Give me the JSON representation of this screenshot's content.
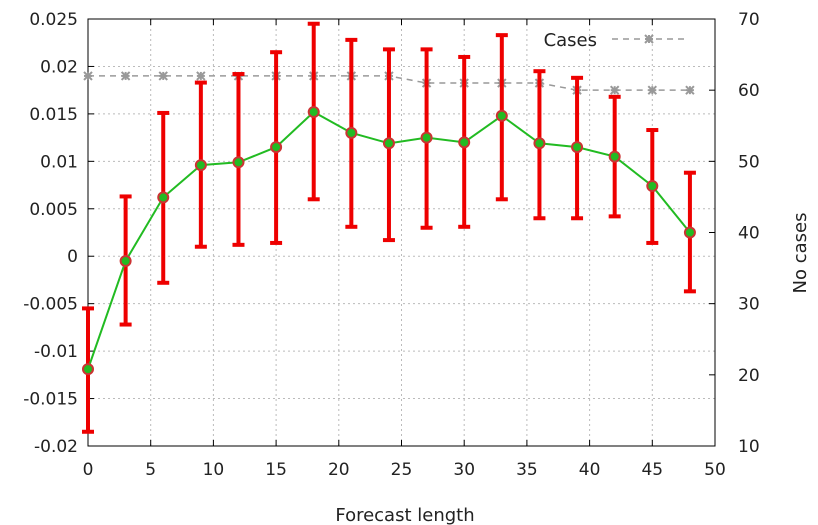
{
  "chart_data": {
    "type": "line",
    "title": "",
    "xlabel": "Forecast length",
    "ylabel": "",
    "y2label": "No cases",
    "xlim": [
      0,
      50
    ],
    "ylim": [
      -0.02,
      0.025
    ],
    "y2lim": [
      10,
      70
    ],
    "x_ticks": [
      "0",
      "5",
      "10",
      "15",
      "20",
      "25",
      "30",
      "35",
      "40",
      "45",
      "50"
    ],
    "y_ticks": [
      "-0.02",
      "-0.015",
      "-0.01",
      "-0.005",
      "0",
      "0.005",
      "0.01",
      "0.015",
      "0.02",
      "0.025"
    ],
    "y2_ticks": [
      "10",
      "20",
      "30",
      "40",
      "50",
      "60",
      "70"
    ],
    "grid": true,
    "legend_position": "top-right",
    "series": [
      {
        "name": "",
        "axis": "left",
        "color": "#22bb22",
        "marker_color": "#cc3333",
        "error_bar_color": "#ee0000",
        "x": [
          0,
          3,
          6,
          9,
          12,
          15,
          18,
          21,
          24,
          27,
          30,
          33,
          36,
          39,
          42,
          45,
          48
        ],
        "y": [
          -0.0119,
          -0.0005,
          0.0062,
          0.0096,
          0.0099,
          0.0115,
          0.0152,
          0.013,
          0.0119,
          0.0125,
          0.012,
          0.0148,
          0.0119,
          0.0115,
          0.0105,
          0.0074,
          0.0025
        ],
        "y_err_low": [
          -0.0185,
          -0.0072,
          -0.0028,
          0.001,
          0.0012,
          0.0014,
          0.006,
          0.0031,
          0.0017,
          0.003,
          0.0031,
          0.006,
          0.004,
          0.004,
          0.0042,
          0.0014,
          -0.0037
        ],
        "y_err_high": [
          -0.0055,
          0.0063,
          0.0151,
          0.0183,
          0.0192,
          0.0215,
          0.0245,
          0.0228,
          0.0218,
          0.0218,
          0.021,
          0.0233,
          0.0195,
          0.0188,
          0.0168,
          0.0133,
          0.0088
        ]
      },
      {
        "name": "Cases",
        "axis": "right",
        "color": "#999999",
        "style": "dashed",
        "marker": "star",
        "x": [
          0,
          3,
          6,
          9,
          12,
          15,
          18,
          21,
          24,
          27,
          30,
          33,
          36,
          39,
          42,
          45,
          48
        ],
        "y": [
          62,
          62,
          62,
          62,
          62,
          62,
          62,
          62,
          62,
          61,
          61,
          61,
          61,
          60,
          60,
          60,
          60
        ]
      }
    ]
  }
}
